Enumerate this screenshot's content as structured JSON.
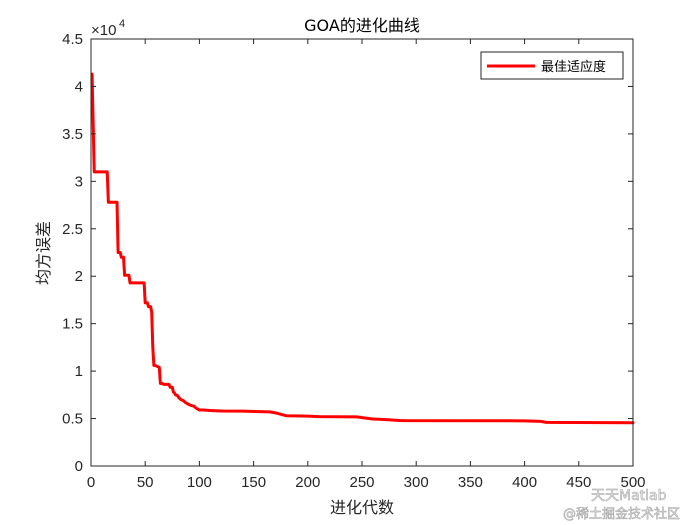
{
  "chart_data": {
    "type": "line",
    "title": "GOA的进化曲线",
    "xlabel": "进化代数",
    "ylabel": "均方误差",
    "y_exponent_label": "×10",
    "y_exponent_power": "4",
    "xlim": [
      0,
      500
    ],
    "ylim": [
      0,
      45000
    ],
    "x_ticks": [
      0,
      50,
      100,
      150,
      200,
      250,
      300,
      350,
      400,
      450,
      500
    ],
    "y_ticks": [
      0,
      0.5,
      1,
      1.5,
      2,
      2.5,
      3,
      3.5,
      4,
      4.5
    ],
    "y_tick_labels": [
      "0",
      "0.5",
      "1",
      "1.5",
      "2",
      "2.5",
      "3",
      "3.5",
      "4",
      "4.5"
    ],
    "grid": false,
    "legend_position": "top-right",
    "series": [
      {
        "name": "最佳适应度",
        "color": "#ff0000",
        "x": [
          1,
          2,
          3,
          15,
          16,
          24,
          25,
          27,
          28,
          30,
          31,
          35,
          36,
          38,
          39,
          49,
          50,
          52,
          53,
          55,
          56,
          57,
          58,
          59,
          63,
          64,
          66,
          67,
          72,
          73,
          75,
          76,
          77,
          78,
          80,
          81,
          83,
          85,
          87,
          90,
          92,
          95,
          97,
          100,
          104,
          110,
          120,
          140,
          165,
          170,
          180,
          200,
          210,
          245,
          250,
          260,
          270,
          285,
          290,
          400,
          415,
          420,
          500
        ],
        "y": [
          41300,
          36000,
          31000,
          31000,
          27800,
          27800,
          22500,
          22500,
          22000,
          22000,
          20100,
          20100,
          19300,
          19300,
          19300,
          19300,
          17200,
          17200,
          16800,
          16800,
          16200,
          12500,
          10600,
          10600,
          10400,
          8700,
          8700,
          8600,
          8600,
          8300,
          8300,
          7800,
          7700,
          7500,
          7400,
          7200,
          7000,
          6900,
          6700,
          6500,
          6400,
          6300,
          6100,
          5900,
          5900,
          5850,
          5800,
          5780,
          5700,
          5600,
          5300,
          5250,
          5200,
          5180,
          5100,
          4950,
          4900,
          4800,
          4780,
          4760,
          4700,
          4600,
          4560
        ]
      }
    ]
  },
  "watermark": {
    "line1": "天天Matlab",
    "line2": "@稀土掘金技术社区"
  }
}
